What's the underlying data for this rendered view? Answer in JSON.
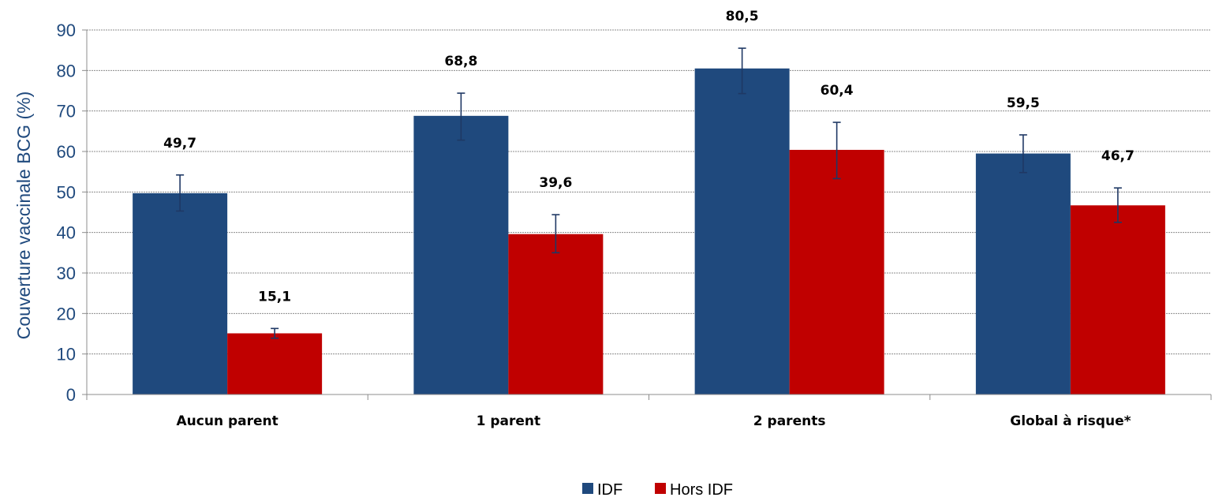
{
  "chart_data": {
    "type": "bar",
    "ylabel": "Couverture vaccinale BCG (%)",
    "xlabel": "",
    "ylim": [
      0,
      90
    ],
    "y_ticks": [
      0,
      10,
      20,
      30,
      40,
      50,
      60,
      70,
      80,
      90
    ],
    "grid": true,
    "legend_position": "bottom-center",
    "categories": [
      "Aucun parent",
      "1 parent",
      "2 parents",
      "Global à risque*"
    ],
    "series": [
      {
        "name": "IDF",
        "color": "#1f497d",
        "values": [
          49.7,
          68.8,
          80.5,
          59.5
        ],
        "labels": [
          "49,7",
          "68,8",
          "80,5",
          "59,5"
        ],
        "error_low": [
          45.3,
          62.8,
          74.3,
          54.8
        ],
        "error_high": [
          54.2,
          74.4,
          85.5,
          64.1
        ]
      },
      {
        "name": "Hors IDF",
        "color": "#c00000",
        "values": [
          15.1,
          39.6,
          60.4,
          46.7
        ],
        "labels": [
          "15,1",
          "39,6",
          "60,4",
          "46,7"
        ],
        "error_low": [
          13.9,
          35.0,
          53.3,
          42.5
        ],
        "error_high": [
          16.3,
          44.4,
          67.2,
          51.0
        ]
      }
    ]
  }
}
